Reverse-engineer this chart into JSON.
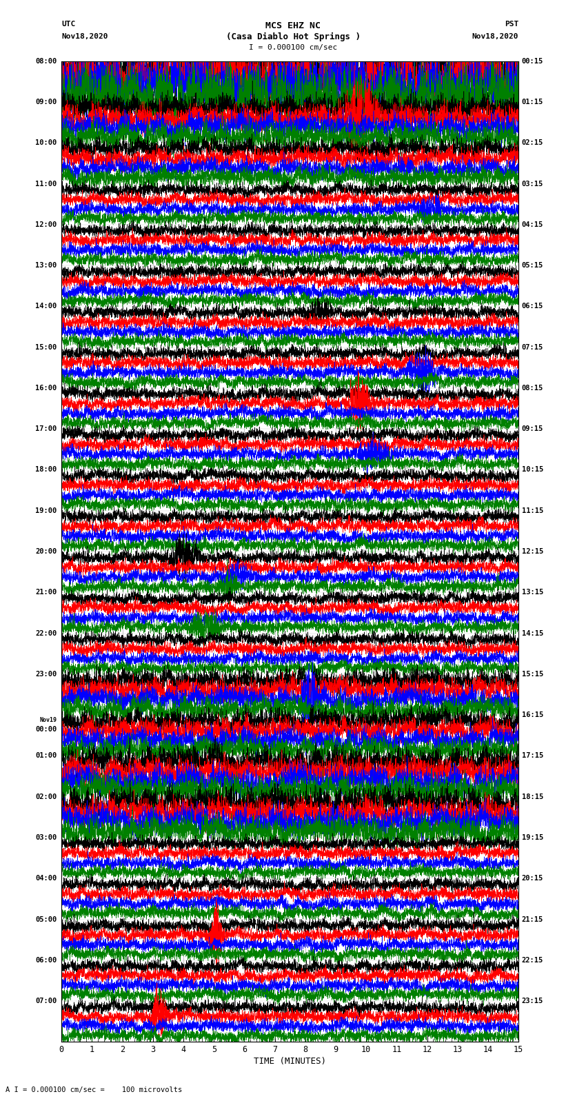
{
  "title_line1": "MCS EHZ NC",
  "title_line2": "(Casa Diablo Hot Springs )",
  "title_line3": "I = 0.000100 cm/sec",
  "left_header_line1": "UTC",
  "left_header_line2": "Nov18,2020",
  "right_header_line1": "PST",
  "right_header_line2": "Nov18,2020",
  "xlabel": "TIME (MINUTES)",
  "footer": "A I = 0.000100 cm/sec =    100 microvolts",
  "utc_times": [
    "08:00",
    "09:00",
    "10:00",
    "11:00",
    "12:00",
    "13:00",
    "14:00",
    "15:00",
    "16:00",
    "17:00",
    "18:00",
    "19:00",
    "20:00",
    "21:00",
    "22:00",
    "23:00",
    "Nov19\n00:00",
    "01:00",
    "02:00",
    "03:00",
    "04:00",
    "05:00",
    "06:00",
    "07:00"
  ],
  "pst_times": [
    "00:15",
    "01:15",
    "02:15",
    "03:15",
    "04:15",
    "05:15",
    "06:15",
    "07:15",
    "08:15",
    "09:15",
    "10:15",
    "11:15",
    "12:15",
    "13:15",
    "14:15",
    "15:15",
    "16:15",
    "17:15",
    "18:15",
    "19:15",
    "20:15",
    "21:15",
    "22:15",
    "23:15"
  ],
  "n_rows": 24,
  "n_traces_per_row": 4,
  "colors": [
    "black",
    "red",
    "blue",
    "green"
  ],
  "xmin": 0,
  "xmax": 15,
  "background_color": "white",
  "noise_seed": 42
}
